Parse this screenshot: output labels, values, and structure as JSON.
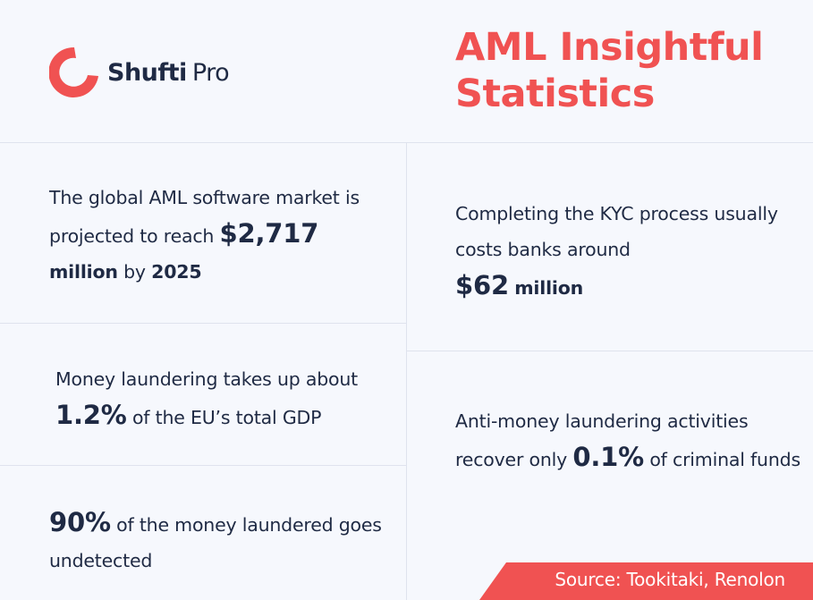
{
  "brand": {
    "name_bold": "Shufti",
    "name_light": "Pro",
    "accent_color": "#f05252",
    "text_color": "#1f2a44"
  },
  "title": {
    "line1": "AML Insightful",
    "line2": "Statistics"
  },
  "stats": {
    "software_market": {
      "text_a": "The global AML software market is projected to reach ",
      "value": "$2,717",
      "unit": "million",
      "text_b": " by ",
      "year": "2025"
    },
    "kyc_cost": {
      "text_a": "Completing the KYC process usually costs banks around ",
      "value": "$62",
      "unit": "million"
    },
    "eu_gdp": {
      "text_a": "Money laundering takes up about ",
      "value": "1.2%",
      "text_b": " of the EU’s total GDP"
    },
    "recovery": {
      "text_a": "Anti-money laundering activities recover only ",
      "value": "0.1%",
      "text_b": " of criminal funds"
    },
    "undetected": {
      "value": "90%",
      "text_a": " of the money laundered goes undetected"
    }
  },
  "source": {
    "label": "Source: Tookitaki, Renolon"
  }
}
